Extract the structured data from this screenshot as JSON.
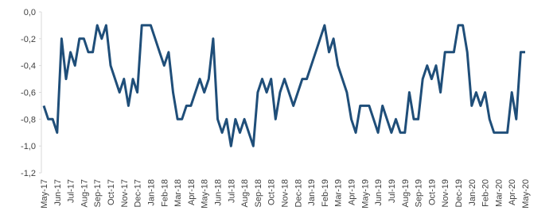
{
  "chart_data": {
    "type": "line",
    "categories": [
      "May-17",
      null,
      null,
      "Jun-17",
      null,
      null,
      "Jul-17",
      null,
      null,
      "Aug-17",
      null,
      null,
      "Sep-17",
      null,
      null,
      "Oct-17",
      null,
      null,
      "Nov-17",
      null,
      null,
      "Dec-17",
      null,
      null,
      "Jan-18",
      null,
      null,
      "Feb-18",
      null,
      null,
      "Mar-18",
      null,
      null,
      "Apr-18",
      null,
      null,
      "May-18",
      null,
      null,
      "Jun-18",
      null,
      null,
      "Jul-18",
      null,
      null,
      "Aug-18",
      null,
      null,
      "Sep-18",
      null,
      null,
      "Oct-18",
      null,
      null,
      "Nov-18",
      null,
      null,
      "Dec-18",
      null,
      null,
      "Jan-19",
      null,
      null,
      "Feb-19",
      null,
      null,
      "Mar-19",
      null,
      null,
      "Apr-19",
      null,
      null,
      "May-19",
      null,
      null,
      "Jun-19",
      null,
      null,
      "Jul-19",
      null,
      null,
      "Aug-19",
      null,
      null,
      "Sep-19",
      null,
      null,
      "Oct-19",
      null,
      null,
      "Nov-19",
      null,
      null,
      "Dec-19",
      null,
      null,
      "Jan-20",
      null,
      null,
      "Feb-20",
      null,
      null,
      "Mar-20",
      null,
      null,
      "Apr-20",
      null,
      null,
      "May-20"
    ],
    "values": [
      -0.7,
      -0.8,
      -0.8,
      -0.9,
      -0.2,
      -0.5,
      -0.3,
      -0.4,
      -0.2,
      -0.2,
      -0.3,
      -0.3,
      -0.1,
      -0.2,
      -0.1,
      -0.4,
      -0.5,
      -0.6,
      -0.5,
      -0.7,
      -0.5,
      -0.6,
      -0.1,
      -0.1,
      -0.1,
      -0.2,
      -0.3,
      -0.4,
      -0.3,
      -0.6,
      -0.8,
      -0.8,
      -0.7,
      -0.7,
      -0.6,
      -0.5,
      -0.6,
      -0.5,
      -0.2,
      -0.8,
      -0.9,
      -0.8,
      -1.0,
      -0.8,
      -0.9,
      -0.8,
      -0.9,
      -1.0,
      -0.6,
      -0.5,
      -0.6,
      -0.5,
      -0.8,
      -0.6,
      -0.5,
      -0.6,
      -0.7,
      -0.6,
      -0.5,
      -0.5,
      -0.4,
      -0.3,
      -0.2,
      -0.1,
      -0.3,
      -0.2,
      -0.4,
      -0.5,
      -0.6,
      -0.8,
      -0.9,
      -0.7,
      -0.7,
      -0.7,
      -0.8,
      -0.9,
      -0.7,
      -0.8,
      -0.9,
      -0.8,
      -0.9,
      -0.9,
      -0.6,
      -0.8,
      -0.8,
      -0.5,
      -0.4,
      -0.5,
      -0.4,
      -0.6,
      -0.3,
      -0.3,
      -0.3,
      -0.1,
      -0.1,
      -0.3,
      -0.7,
      -0.6,
      -0.7,
      -0.6,
      -0.8,
      -0.9,
      -0.9,
      -0.9,
      -0.9,
      -0.6,
      -0.8,
      -0.3,
      -0.3
    ],
    "color": "#1f4e79",
    "ylim": [
      -1.2,
      0
    ],
    "yticks": [
      {
        "value": 0,
        "label": "0,0"
      },
      {
        "value": -0.2,
        "label": "-0,2"
      },
      {
        "value": -0.4,
        "label": "-0,4"
      },
      {
        "value": -0.6,
        "label": "-0,6"
      },
      {
        "value": -0.8,
        "label": "-0,8"
      },
      {
        "value": -1.0,
        "label": "-1,0"
      },
      {
        "value": -1.2,
        "label": "-1,2"
      }
    ]
  }
}
